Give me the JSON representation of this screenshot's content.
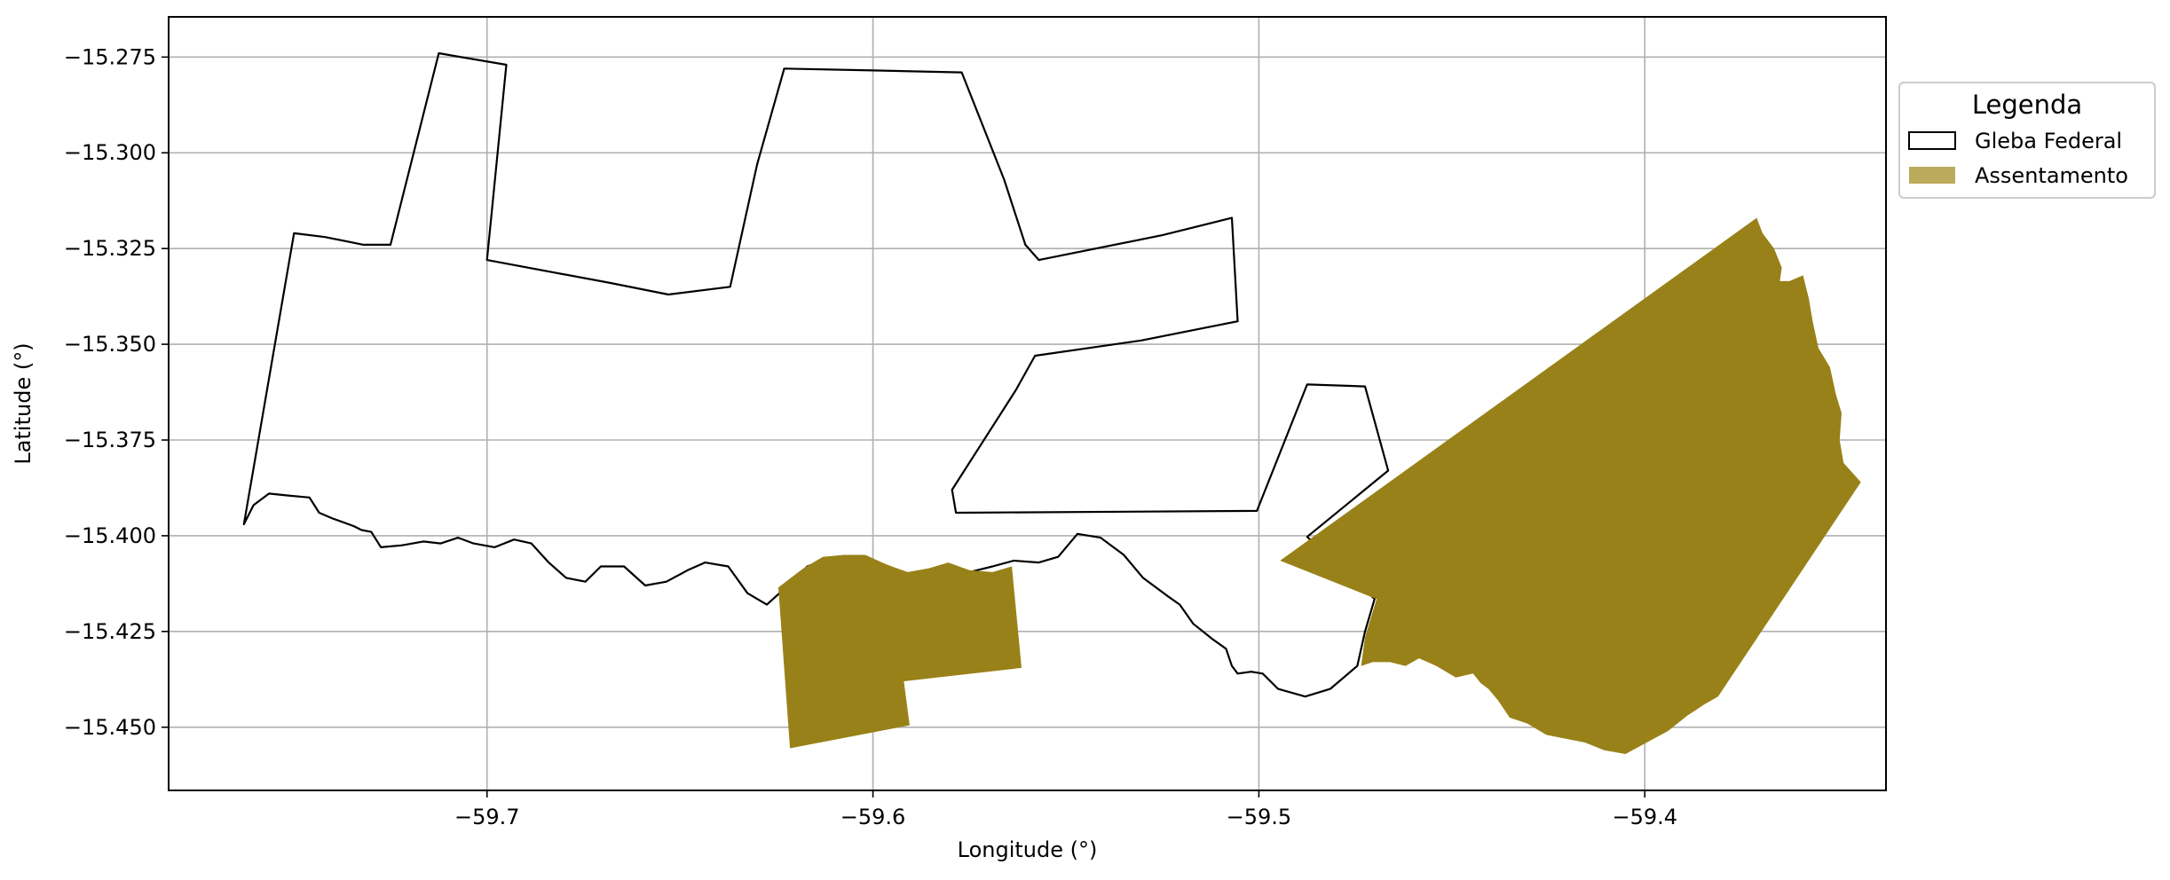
{
  "chart_data": {
    "type": "map",
    "xlabel": "Longitude (°)",
    "ylabel": "Latitude (°)",
    "xlim": [
      -59.7825,
      -59.3375
    ],
    "ylim": [
      -15.4665,
      -15.2645
    ],
    "grid": true,
    "x_ticks": [
      -59.7,
      -59.6,
      -59.5,
      -59.4
    ],
    "x_tick_labels": [
      "−59.7",
      "−59.6",
      "−59.5",
      "−59.4"
    ],
    "y_ticks": [
      -15.275,
      -15.3,
      -15.325,
      -15.35,
      -15.375,
      -15.4,
      -15.425,
      -15.45
    ],
    "y_tick_labels": [
      "−15.275",
      "−15.300",
      "−15.325",
      "−15.350",
      "−15.375",
      "−15.400",
      "−15.425",
      "−15.450"
    ],
    "legend": {
      "title": "Legenda",
      "position": "outside-right",
      "entries": [
        {
          "label": "Gleba Federal",
          "style": "outline",
          "color": "#000000"
        },
        {
          "label": "Assentamento",
          "style": "fill",
          "color": "#bbaa5c"
        }
      ]
    },
    "colors": {
      "gleba_outline": "#000000",
      "assentamento_fill": "#988118",
      "grid": "#b0b0b0"
    },
    "layers": [
      {
        "name": "Gleba Federal",
        "kind": "outline",
        "rings": [
          [
            [
              -59.763,
              -15.397
            ],
            [
              -59.75,
              -15.321
            ],
            [
              -59.742,
              -15.322
            ],
            [
              -59.732,
              -15.324
            ],
            [
              -59.725,
              -15.324
            ],
            [
              -59.7125,
              -15.274
            ],
            [
              -59.695,
              -15.277
            ],
            [
              -59.7,
              -15.328
            ],
            [
              -59.668,
              -15.334
            ],
            [
              -59.653,
              -15.337
            ],
            [
              -59.637,
              -15.335
            ],
            [
              -59.63,
              -15.303
            ],
            [
              -59.623,
              -15.278
            ],
            [
              -59.6,
              -15.2785
            ],
            [
              -59.577,
              -15.279
            ],
            [
              -59.566,
              -15.307
            ],
            [
              -59.5605,
              -15.324
            ],
            [
              -59.557,
              -15.328
            ],
            [
              -59.525,
              -15.3215
            ],
            [
              -59.507,
              -15.317
            ],
            [
              -59.5055,
              -15.344
            ],
            [
              -59.5305,
              -15.349
            ],
            [
              -59.558,
              -15.353
            ],
            [
              -59.563,
              -15.362
            ],
            [
              -59.5795,
              -15.388
            ],
            [
              -59.5785,
              -15.394
            ],
            [
              -59.5005,
              -15.3935
            ],
            [
              -59.4875,
              -15.3605
            ],
            [
              -59.4725,
              -15.361
            ],
            [
              -59.4665,
              -15.383
            ],
            [
              -59.4875,
              -15.4003
            ],
            [
              -59.47,
              -15.4165
            ],
            [
              -59.4725,
              -15.425
            ],
            [
              -59.4745,
              -15.434
            ],
            [
              -59.4815,
              -15.44
            ],
            [
              -59.488,
              -15.442
            ],
            [
              -59.495,
              -15.44
            ],
            [
              -59.499,
              -15.436
            ],
            [
              -59.502,
              -15.4355
            ],
            [
              -59.5055,
              -15.436
            ],
            [
              -59.507,
              -15.434
            ],
            [
              -59.5085,
              -15.4295
            ],
            [
              -59.512,
              -15.427
            ],
            [
              -59.517,
              -15.423
            ],
            [
              -59.5205,
              -15.418
            ],
            [
              -59.524,
              -15.4155
            ],
            [
              -59.53,
              -15.411
            ],
            [
              -59.535,
              -15.405
            ],
            [
              -59.541,
              -15.4005
            ],
            [
              -59.547,
              -15.3995
            ],
            [
              -59.552,
              -15.4055
            ],
            [
              -59.557,
              -15.407
            ],
            [
              -59.5635,
              -15.4065
            ],
            [
              -59.569,
              -15.408
            ],
            [
              -59.575,
              -15.4095
            ],
            [
              -59.5805,
              -15.4075
            ],
            [
              -59.5855,
              -15.409
            ],
            [
              -59.591,
              -15.41
            ],
            [
              -59.5965,
              -15.408
            ],
            [
              -59.602,
              -15.4055
            ],
            [
              -59.6075,
              -15.4055
            ],
            [
              -59.613,
              -15.4065
            ],
            [
              -59.617,
              -15.408
            ],
            [
              -59.622,
              -15.413
            ],
            [
              -59.6275,
              -15.418
            ],
            [
              -59.6325,
              -15.415
            ],
            [
              -59.6375,
              -15.408
            ],
            [
              -59.6435,
              -15.407
            ],
            [
              -59.648,
              -15.409
            ],
            [
              -59.6535,
              -15.412
            ],
            [
              -59.659,
              -15.413
            ],
            [
              -59.6645,
              -15.408
            ],
            [
              -59.6705,
              -15.408
            ],
            [
              -59.6745,
              -15.412
            ],
            [
              -59.6795,
              -15.411
            ],
            [
              -59.684,
              -15.407
            ],
            [
              -59.6885,
              -15.402
            ],
            [
              -59.693,
              -15.401
            ],
            [
              -59.698,
              -15.403
            ],
            [
              -59.7035,
              -15.402
            ],
            [
              -59.7075,
              -15.4005
            ],
            [
              -59.712,
              -15.402
            ],
            [
              -59.7165,
              -15.4015
            ],
            [
              -59.722,
              -15.4025
            ],
            [
              -59.7275,
              -15.403
            ],
            [
              -59.73,
              -15.399
            ],
            [
              -59.7325,
              -15.3985
            ],
            [
              -59.7345,
              -15.3975
            ],
            [
              -59.74,
              -15.3955
            ],
            [
              -59.7435,
              -15.394
            ],
            [
              -59.746,
              -15.39
            ],
            [
              -59.7515,
              -15.3895
            ],
            [
              -59.7565,
              -15.389
            ],
            [
              -59.7605,
              -15.392
            ],
            [
              -59.763,
              -15.397
            ]
          ]
        ]
      },
      {
        "name": "Assentamento",
        "kind": "fill",
        "rings": [
          [
            [
              -59.6245,
              -15.4135
            ],
            [
              -59.6215,
              -15.4555
            ],
            [
              -59.5905,
              -15.4495
            ],
            [
              -59.592,
              -15.438
            ],
            [
              -59.5615,
              -15.4345
            ],
            [
              -59.564,
              -15.408
            ],
            [
              -59.569,
              -15.4095
            ],
            [
              -59.575,
              -15.409
            ],
            [
              -59.5805,
              -15.407
            ],
            [
              -59.5855,
              -15.4085
            ],
            [
              -59.591,
              -15.4095
            ],
            [
              -59.5965,
              -15.4075
            ],
            [
              -59.602,
              -15.405
            ],
            [
              -59.6075,
              -15.405
            ],
            [
              -59.613,
              -15.4055
            ],
            [
              -59.618,
              -15.4085
            ],
            [
              -59.6245,
              -15.4135
            ]
          ],
          [
            [
              -59.4945,
              -15.4065
            ],
            [
              -59.371,
              -15.317
            ],
            [
              -59.3695,
              -15.321
            ],
            [
              -59.3665,
              -15.325
            ],
            [
              -59.3645,
              -15.33
            ],
            [
              -59.365,
              -15.3335
            ],
            [
              -59.3625,
              -15.3335
            ],
            [
              -59.359,
              -15.332
            ],
            [
              -59.3575,
              -15.338
            ],
            [
              -59.3565,
              -15.344
            ],
            [
              -59.355,
              -15.351
            ],
            [
              -59.352,
              -15.356
            ],
            [
              -59.3505,
              -15.363
            ],
            [
              -59.349,
              -15.368
            ],
            [
              -59.3495,
              -15.375
            ],
            [
              -59.3485,
              -15.381
            ],
            [
              -59.344,
              -15.386
            ],
            [
              -59.381,
              -15.442
            ],
            [
              -59.3845,
              -15.444
            ],
            [
              -59.389,
              -15.447
            ],
            [
              -59.394,
              -15.451
            ],
            [
              -59.3995,
              -15.454
            ],
            [
              -59.405,
              -15.457
            ],
            [
              -59.4105,
              -15.456
            ],
            [
              -59.4155,
              -15.454
            ],
            [
              -59.4205,
              -15.453
            ],
            [
              -59.4255,
              -15.452
            ],
            [
              -59.4305,
              -15.449
            ],
            [
              -59.435,
              -15.4475
            ],
            [
              -59.438,
              -15.443
            ],
            [
              -59.4405,
              -15.44
            ],
            [
              -59.4425,
              -15.4385
            ],
            [
              -59.4445,
              -15.436
            ],
            [
              -59.449,
              -15.437
            ],
            [
              -59.454,
              -15.434
            ],
            [
              -59.4585,
              -15.432
            ],
            [
              -59.462,
              -15.434
            ],
            [
              -59.466,
              -15.433
            ],
            [
              -59.4705,
              -15.433
            ],
            [
              -59.4735,
              -15.434
            ],
            [
              -59.4725,
              -15.4265
            ],
            [
              -59.4695,
              -15.4165
            ],
            [
              -59.4945,
              -15.4065
            ]
          ]
        ]
      }
    ]
  }
}
